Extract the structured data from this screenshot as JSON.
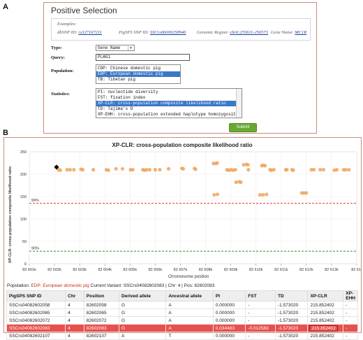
{
  "panel_a": {
    "label": "A",
    "title": "Positive Selection",
    "examples": {
      "heading": "Examples:",
      "items": [
        {
          "prefix": "dbSNP ID:",
          "value": "rs327167211"
        },
        {
          "prefix": "PigSPS SNP ID:",
          "value": "SSCrs06000258946"
        },
        {
          "prefix": "Genomic Region:",
          "value": "chr6:255611-256573"
        },
        {
          "prefix": "Gene Name:",
          "value": "MC1R"
        }
      ]
    },
    "type": {
      "label": "Type:",
      "value": "Gene Name"
    },
    "query": {
      "label": "Query:",
      "value": "PLAG1"
    },
    "population": {
      "label": "Population:",
      "options": [
        "CDP: Chinese domestic pig",
        "EDP: European domestic pig",
        "TB: Tibetan pig"
      ],
      "selected": 1
    },
    "statistics": {
      "label": "Statistics:",
      "options": [
        "PI: nucleotide diversity",
        "FST: fixation index",
        "XP-CLR: cross-population composite likelihood ratio",
        "TD: Tajima's D",
        "XP-EHH: cross-population extended haplotype homozygosity"
      ],
      "selected": 2
    },
    "submit_label": "Submit"
  },
  "panel_b": {
    "label": "B",
    "info": {
      "population_label": "Population:",
      "population_value": "EDP: European domestic pig",
      "variant_text": "Current Variant: SSCrs04082602083 | Chr: 4 | Pos: 82602083"
    },
    "table": {
      "headers": [
        "PigSPS SNP ID",
        "Chr",
        "Position",
        "Derived allele",
        "Ancestral allele",
        "PI",
        "FST",
        "TD",
        "XP-CLR",
        "XP-EHH"
      ],
      "rows": [
        [
          "SSCrs04082602058",
          "4",
          "82602058",
          "G",
          "A",
          "0.000000",
          "-",
          "-1.573020",
          "215.852402",
          "-"
        ],
        [
          "SSCrs04082602065",
          "4",
          "82602065",
          "G",
          "A",
          "0.000000",
          "-",
          "-1.573020",
          "215.852402",
          "-"
        ],
        [
          "SSCrs04082602072",
          "4",
          "82602072",
          "G",
          "A",
          "0.000000",
          "-",
          "-1.573020",
          "215.852402",
          "-"
        ],
        [
          "SSCrs04082602083",
          "4",
          "82602083",
          "G",
          "A",
          "0.034483",
          "-0.012583",
          "-1.573020",
          "215.852402",
          "-"
        ],
        [
          "SSCrs04082602107",
          "4",
          "82602107",
          "A",
          "T",
          "0.000000",
          "-",
          "-1.573020",
          "215.852402",
          "-"
        ]
      ],
      "highlight_row": 3
    }
  },
  "chart_data": {
    "type": "scatter",
    "title": "XP-CLR: cross-population composite likelihood ratio",
    "xlabel": "Chromosome position",
    "ylabel": "XP-CLR: cross-population composite likelihood ratio",
    "xlim": [
      82601000,
      82614000
    ],
    "ylim": [
      0,
      250
    ],
    "x_ticks": [
      82601000,
      82602000,
      82603000,
      82604000,
      82605000,
      82606000,
      82607000,
      82608000,
      82609000,
      82610000,
      82611000,
      82612000,
      82613000,
      82614000
    ],
    "x_tick_labels": [
      "82 601k",
      "82 602k",
      "82 603k",
      "82 604k",
      "82 605k",
      "82 606k",
      "82 607k",
      "82 608k",
      "82 609k",
      "82 610k",
      "82 611k",
      "82 612k",
      "82 613k",
      "82 61-"
    ],
    "y_ticks": [
      0,
      50,
      100,
      150,
      200,
      250
    ],
    "grid": true,
    "thresholds": [
      {
        "label": "99%",
        "value": 135,
        "color": "#e03a2a"
      },
      {
        "label": "90%",
        "value": 28,
        "color": "#2e8a2e"
      }
    ],
    "point_color": "#f0a45c",
    "highlight_color": "#000000",
    "highlight": {
      "x": 82602083,
      "y": 215.85
    },
    "points": [
      {
        "x": 82602060,
        "y": 215.9
      },
      {
        "x": 82602072,
        "y": 215.9
      },
      {
        "x": 82602160,
        "y": 210
      },
      {
        "x": 82602230,
        "y": 209
      },
      {
        "x": 82602500,
        "y": 210
      },
      {
        "x": 82602620,
        "y": 210
      },
      {
        "x": 82602770,
        "y": 210
      },
      {
        "x": 82603050,
        "y": 211
      },
      {
        "x": 82603120,
        "y": 210
      },
      {
        "x": 82603540,
        "y": 210
      },
      {
        "x": 82604060,
        "y": 210
      },
      {
        "x": 82604140,
        "y": 209
      },
      {
        "x": 82604440,
        "y": 212
      },
      {
        "x": 82604700,
        "y": 212
      },
      {
        "x": 82605020,
        "y": 210
      },
      {
        "x": 82605110,
        "y": 210
      },
      {
        "x": 82605510,
        "y": 210
      },
      {
        "x": 82605580,
        "y": 209
      },
      {
        "x": 82605660,
        "y": 210
      },
      {
        "x": 82605780,
        "y": 210
      },
      {
        "x": 82606000,
        "y": 210
      },
      {
        "x": 82606180,
        "y": 210
      },
      {
        "x": 82606530,
        "y": 212
      },
      {
        "x": 82607060,
        "y": 213
      },
      {
        "x": 82607110,
        "y": 212
      },
      {
        "x": 82607560,
        "y": 213
      },
      {
        "x": 82607600,
        "y": 211
      },
      {
        "x": 82608310,
        "y": 224
      },
      {
        "x": 82608400,
        "y": 224
      },
      {
        "x": 82608460,
        "y": 225
      },
      {
        "x": 82608340,
        "y": 154
      },
      {
        "x": 82608470,
        "y": 155
      },
      {
        "x": 82608850,
        "y": 210
      },
      {
        "x": 82608920,
        "y": 209
      },
      {
        "x": 82609010,
        "y": 210
      },
      {
        "x": 82609090,
        "y": 209
      },
      {
        "x": 82609180,
        "y": 210
      },
      {
        "x": 82609210,
        "y": 182
      },
      {
        "x": 82609340,
        "y": 183
      },
      {
        "x": 82609400,
        "y": 182
      },
      {
        "x": 82609510,
        "y": 221
      },
      {
        "x": 82609620,
        "y": 222
      },
      {
        "x": 82609680,
        "y": 221
      },
      {
        "x": 82609700,
        "y": 210
      },
      {
        "x": 82610230,
        "y": 219
      },
      {
        "x": 82610290,
        "y": 220
      },
      {
        "x": 82610360,
        "y": 219
      },
      {
        "x": 82610160,
        "y": 154
      },
      {
        "x": 82610280,
        "y": 154
      },
      {
        "x": 82610420,
        "y": 155
      },
      {
        "x": 82610560,
        "y": 210
      },
      {
        "x": 82610610,
        "y": 209
      },
      {
        "x": 82610710,
        "y": 210
      },
      {
        "x": 82611180,
        "y": 210
      },
      {
        "x": 82611230,
        "y": 210
      },
      {
        "x": 82611430,
        "y": 210
      },
      {
        "x": 82611480,
        "y": 209
      },
      {
        "x": 82611820,
        "y": 158
      },
      {
        "x": 82611910,
        "y": 158
      },
      {
        "x": 82612000,
        "y": 158
      },
      {
        "x": 82612200,
        "y": 210
      },
      {
        "x": 82612300,
        "y": 210
      },
      {
        "x": 82612550,
        "y": 210
      },
      {
        "x": 82612680,
        "y": 210
      },
      {
        "x": 82613110,
        "y": 209
      },
      {
        "x": 82613210,
        "y": 210
      },
      {
        "x": 82613480,
        "y": 210
      },
      {
        "x": 82613560,
        "y": 210
      },
      {
        "x": 82613690,
        "y": 210
      }
    ]
  }
}
